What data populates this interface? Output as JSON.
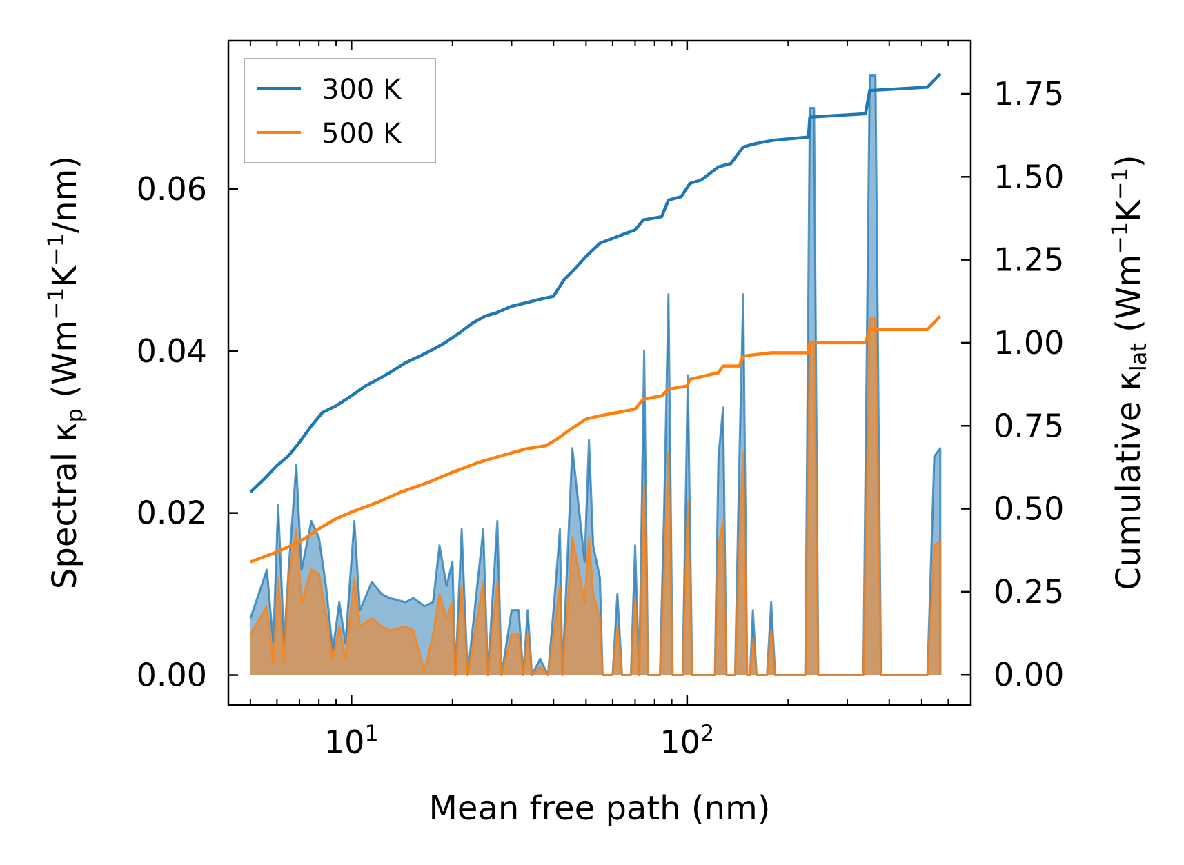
{
  "chart_data": {
    "type": "line",
    "title": "",
    "xlabel": "Mean free path (nm)",
    "xscale": "log",
    "xlim": [
      4.3,
      700
    ],
    "xticks": [
      {
        "value": 10,
        "base": "10",
        "exp": "1"
      },
      {
        "value": 100,
        "base": "10",
        "exp": "2"
      }
    ],
    "ylabel_left": {
      "pre": "Spectral κ",
      "sub": "p",
      "post": " (Wm",
      "sup1": "−1",
      "mid": "K",
      "sup2": "−1",
      "end": "/nm)"
    },
    "ylabel_right": {
      "pre": "Cumulative κ",
      "sub": "lat",
      "post": " (Wm",
      "sup1": "−1",
      "mid": "K",
      "sup2": "−1",
      "end": ")"
    },
    "ylim_left": [
      -0.0037,
      0.0783
    ],
    "yticks_left": [
      "0.00",
      "0.02",
      "0.04",
      "0.06"
    ],
    "ylim_right": [
      -0.091,
      1.91
    ],
    "yticks_right": [
      "0.00",
      "0.25",
      "0.50",
      "0.75",
      "1.00",
      "1.25",
      "1.50",
      "1.75"
    ],
    "legend": {
      "position": "top-left",
      "entries": [
        {
          "label": "300 K",
          "color": "#1f77b4"
        },
        {
          "label": "500 K",
          "color": "#ff7f0e"
        }
      ]
    },
    "spectral_series": [
      {
        "name": "300 K",
        "color": "#1f77b4",
        "points": [
          [
            5.0,
            0.007
          ],
          [
            5.6,
            0.013
          ],
          [
            5.85,
            0.004
          ],
          [
            6.05,
            0.021
          ],
          [
            6.3,
            0.004
          ],
          [
            6.5,
            0.013
          ],
          [
            6.85,
            0.026
          ],
          [
            7.1,
            0.013
          ],
          [
            7.6,
            0.019
          ],
          [
            8.0,
            0.017
          ],
          [
            8.4,
            0.011
          ],
          [
            8.8,
            0.003
          ],
          [
            9.2,
            0.009
          ],
          [
            9.6,
            0.004
          ],
          [
            10.2,
            0.019
          ],
          [
            10.6,
            0.008
          ],
          [
            11.5,
            0.0115
          ],
          [
            12.3,
            0.01
          ],
          [
            13.0,
            0.0095
          ],
          [
            14.5,
            0.009
          ],
          [
            15.3,
            0.0095
          ],
          [
            16.5,
            0.0085
          ],
          [
            17.5,
            0.009
          ],
          [
            18.3,
            0.016
          ],
          [
            19.2,
            0.011
          ],
          [
            20.0,
            0.014
          ],
          [
            20.4,
            0.0
          ],
          [
            21.3,
            0.018
          ],
          [
            22.2,
            0.0
          ],
          [
            24.7,
            0.018
          ],
          [
            25.5,
            0.0
          ],
          [
            27.2,
            0.019
          ],
          [
            28.0,
            0.0
          ],
          [
            30.0,
            0.008
          ],
          [
            31.5,
            0.008
          ],
          [
            32.5,
            0.0
          ],
          [
            33.5,
            0.008
          ],
          [
            34.5,
            0.0
          ],
          [
            36.5,
            0.002
          ],
          [
            38.5,
            0.0
          ],
          [
            40.0,
            0.008
          ],
          [
            41.8,
            0.018
          ],
          [
            42.5,
            0.0
          ],
          [
            44.5,
            0.019
          ],
          [
            45.5,
            0.028
          ],
          [
            47.5,
            0.021
          ],
          [
            49.5,
            0.014
          ],
          [
            51.0,
            0.029
          ],
          [
            52.5,
            0.016
          ],
          [
            55.0,
            0.012
          ],
          [
            56.0,
            0.0
          ],
          [
            58.0,
            0.0
          ],
          [
            60.0,
            0.0
          ],
          [
            62.0,
            0.01
          ],
          [
            64.0,
            0.0
          ],
          [
            68.0,
            0.0
          ],
          [
            70.0,
            0.016
          ],
          [
            72.0,
            0.0
          ],
          [
            74.5,
            0.04
          ],
          [
            76.5,
            0.0
          ],
          [
            83.0,
            0.0
          ],
          [
            85.5,
            0.021
          ],
          [
            88.0,
            0.047
          ],
          [
            90.5,
            0.0
          ],
          [
            97.0,
            0.0
          ],
          [
            100.5,
            0.037
          ],
          [
            103.5,
            0.0
          ],
          [
            108.0,
            0.0
          ],
          [
            121.0,
            0.0
          ],
          [
            124.0,
            0.027
          ],
          [
            128.0,
            0.033
          ],
          [
            131.0,
            0.0
          ],
          [
            139.0,
            0.0
          ],
          [
            143.0,
            0.026
          ],
          [
            147.0,
            0.047
          ],
          [
            151.0,
            0.0
          ],
          [
            154.0,
            0.0
          ],
          [
            157.0,
            0.008
          ],
          [
            161.0,
            0.0
          ],
          [
            173.0,
            0.0
          ],
          [
            178.0,
            0.009
          ],
          [
            183.0,
            0.0
          ],
          [
            225.0,
            0.0
          ],
          [
            232.0,
            0.07
          ],
          [
            239.0,
            0.07
          ],
          [
            246.0,
            0.0
          ],
          [
            335.0,
            0.0
          ],
          [
            350.0,
            0.074
          ],
          [
            364.0,
            0.074
          ],
          [
            378.0,
            0.0
          ],
          [
            520.0,
            0.0
          ],
          [
            545.0,
            0.027
          ],
          [
            568.0,
            0.028
          ],
          [
            568.0,
            0.0
          ]
        ]
      },
      {
        "name": "500 K",
        "color": "#ff7f0e",
        "points": [
          [
            5.0,
            0.005
          ],
          [
            5.6,
            0.0085
          ],
          [
            5.85,
            0.0015
          ],
          [
            6.05,
            0.012
          ],
          [
            6.3,
            0.0015
          ],
          [
            6.5,
            0.012
          ],
          [
            6.85,
            0.018
          ],
          [
            7.1,
            0.009
          ],
          [
            7.6,
            0.013
          ],
          [
            8.0,
            0.0125
          ],
          [
            8.4,
            0.0075
          ],
          [
            8.8,
            0.002
          ],
          [
            9.2,
            0.006
          ],
          [
            9.6,
            0.002
          ],
          [
            10.2,
            0.012
          ],
          [
            10.6,
            0.006
          ],
          [
            11.5,
            0.007
          ],
          [
            12.3,
            0.006
          ],
          [
            13.0,
            0.0055
          ],
          [
            14.5,
            0.006
          ],
          [
            15.3,
            0.0055
          ],
          [
            16.5,
            0.0005
          ],
          [
            17.5,
            0.005
          ],
          [
            18.3,
            0.01
          ],
          [
            19.2,
            0.007
          ],
          [
            20.0,
            0.009
          ],
          [
            20.4,
            0.0
          ],
          [
            21.3,
            0.011
          ],
          [
            22.2,
            0.0
          ],
          [
            24.7,
            0.0115
          ],
          [
            25.5,
            0.0
          ],
          [
            27.2,
            0.0115
          ],
          [
            28.0,
            0.0
          ],
          [
            30.0,
            0.005
          ],
          [
            31.5,
            0.005
          ],
          [
            32.5,
            0.0
          ],
          [
            33.5,
            0.005
          ],
          [
            34.5,
            0.0
          ],
          [
            36.5,
            0.001
          ],
          [
            38.5,
            0.0
          ],
          [
            40.0,
            0.005
          ],
          [
            41.8,
            0.011
          ],
          [
            42.5,
            0.0
          ],
          [
            44.5,
            0.011
          ],
          [
            45.5,
            0.017
          ],
          [
            47.5,
            0.013
          ],
          [
            49.5,
            0.009
          ],
          [
            51.0,
            0.017
          ],
          [
            52.5,
            0.01
          ],
          [
            55.0,
            0.007
          ],
          [
            56.0,
            0.0
          ],
          [
            58.0,
            0.0
          ],
          [
            60.0,
            0.0
          ],
          [
            62.0,
            0.006
          ],
          [
            64.0,
            0.0
          ],
          [
            68.0,
            0.0
          ],
          [
            70.0,
            0.0095
          ],
          [
            72.0,
            0.0
          ],
          [
            74.5,
            0.0235
          ],
          [
            76.5,
            0.0
          ],
          [
            83.0,
            0.0
          ],
          [
            85.5,
            0.013
          ],
          [
            88.0,
            0.0275
          ],
          [
            90.5,
            0.0
          ],
          [
            97.0,
            0.0
          ],
          [
            100.5,
            0.0215
          ],
          [
            103.5,
            0.0
          ],
          [
            108.0,
            0.0
          ],
          [
            121.0,
            0.0
          ],
          [
            124.0,
            0.016
          ],
          [
            128.0,
            0.019
          ],
          [
            131.0,
            0.0
          ],
          [
            139.0,
            0.0
          ],
          [
            143.0,
            0.0155
          ],
          [
            147.0,
            0.0275
          ],
          [
            151.0,
            0.0
          ],
          [
            154.0,
            0.0
          ],
          [
            157.0,
            0.0045
          ],
          [
            161.0,
            0.0
          ],
          [
            173.0,
            0.0
          ],
          [
            178.0,
            0.0055
          ],
          [
            183.0,
            0.0
          ],
          [
            225.0,
            0.0
          ],
          [
            232.0,
            0.041
          ],
          [
            239.0,
            0.041
          ],
          [
            246.0,
            0.0
          ],
          [
            335.0,
            0.0
          ],
          [
            350.0,
            0.044
          ],
          [
            364.0,
            0.044
          ],
          [
            378.0,
            0.0
          ],
          [
            520.0,
            0.0
          ],
          [
            545.0,
            0.016
          ],
          [
            568.0,
            0.0165
          ],
          [
            568.0,
            0.0
          ]
        ]
      }
    ],
    "cumulative_series": [
      {
        "name": "300 K",
        "color": "#1f77b4",
        "points": [
          [
            5.0,
            0.55
          ],
          [
            5.5,
            0.59
          ],
          [
            6.0,
            0.63
          ],
          [
            6.5,
            0.66
          ],
          [
            7.0,
            0.7
          ],
          [
            7.6,
            0.75
          ],
          [
            8.2,
            0.79
          ],
          [
            9.0,
            0.81
          ],
          [
            10.0,
            0.84
          ],
          [
            11.0,
            0.87
          ],
          [
            12.0,
            0.89
          ],
          [
            13.0,
            0.91
          ],
          [
            14.5,
            0.94
          ],
          [
            16.0,
            0.96
          ],
          [
            17.5,
            0.98
          ],
          [
            19.0,
            1.0
          ],
          [
            21.0,
            1.03
          ],
          [
            23.0,
            1.06
          ],
          [
            25.0,
            1.08
          ],
          [
            27.0,
            1.09
          ],
          [
            30.0,
            1.11
          ],
          [
            33.0,
            1.12
          ],
          [
            36.0,
            1.13
          ],
          [
            40.0,
            1.14
          ],
          [
            43.0,
            1.19
          ],
          [
            46.0,
            1.22
          ],
          [
            50.0,
            1.26
          ],
          [
            55.0,
            1.3
          ],
          [
            62.0,
            1.32
          ],
          [
            70.0,
            1.34
          ],
          [
            74.0,
            1.37
          ],
          [
            84.0,
            1.38
          ],
          [
            88.0,
            1.43
          ],
          [
            96.0,
            1.44
          ],
          [
            102.0,
            1.48
          ],
          [
            110.0,
            1.49
          ],
          [
            124.0,
            1.53
          ],
          [
            135.0,
            1.54
          ],
          [
            147.0,
            1.59
          ],
          [
            160.0,
            1.6
          ],
          [
            180.0,
            1.61
          ],
          [
            230.0,
            1.62
          ],
          [
            232.0,
            1.68
          ],
          [
            340.0,
            1.69
          ],
          [
            350.0,
            1.76
          ],
          [
            520.0,
            1.77
          ],
          [
            568.0,
            1.81
          ]
        ]
      },
      {
        "name": "500 K",
        "color": "#ff7f0e",
        "points": [
          [
            5.0,
            0.34
          ],
          [
            6.0,
            0.37
          ],
          [
            7.0,
            0.4
          ],
          [
            8.0,
            0.44
          ],
          [
            9.0,
            0.47
          ],
          [
            10.0,
            0.49
          ],
          [
            12.0,
            0.52
          ],
          [
            14.0,
            0.55
          ],
          [
            17.0,
            0.58
          ],
          [
            20.0,
            0.61
          ],
          [
            24.0,
            0.64
          ],
          [
            28.0,
            0.66
          ],
          [
            33.0,
            0.68
          ],
          [
            38.0,
            0.69
          ],
          [
            41.0,
            0.71
          ],
          [
            45.0,
            0.74
          ],
          [
            50.0,
            0.77
          ],
          [
            55.0,
            0.78
          ],
          [
            62.0,
            0.79
          ],
          [
            70.0,
            0.8
          ],
          [
            74.0,
            0.83
          ],
          [
            84.0,
            0.84
          ],
          [
            88.0,
            0.86
          ],
          [
            100.0,
            0.87
          ],
          [
            102.0,
            0.89
          ],
          [
            124.0,
            0.91
          ],
          [
            128.0,
            0.93
          ],
          [
            143.0,
            0.93
          ],
          [
            147.0,
            0.96
          ],
          [
            178.0,
            0.97
          ],
          [
            230.0,
            0.97
          ],
          [
            232.0,
            1.0
          ],
          [
            340.0,
            1.0
          ],
          [
            350.0,
            1.04
          ],
          [
            520.0,
            1.04
          ],
          [
            568.0,
            1.08
          ]
        ]
      }
    ]
  }
}
